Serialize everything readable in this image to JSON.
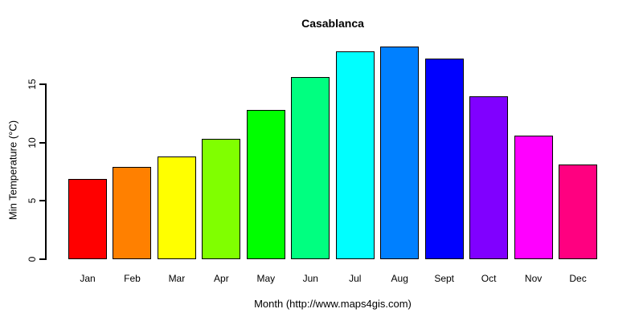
{
  "colors": {
    "background": "#FFFFFF",
    "text": "#000000",
    "axis": "#000000",
    "bar_border": "#000000"
  },
  "chart_data": {
    "type": "bar",
    "title": "Casablanca",
    "xlabel": "Month (http://www.maps4gis.com)",
    "ylabel": "Min Temperature (°C)",
    "categories": [
      "Jan",
      "Feb",
      "Mar",
      "Apr",
      "May",
      "Jun",
      "Jul",
      "Aug",
      "Sept",
      "Oct",
      "Nov",
      "Dec"
    ],
    "values": [
      6.9,
      7.9,
      8.8,
      10.3,
      12.8,
      15.6,
      17.8,
      18.2,
      17.2,
      14.0,
      10.6,
      8.1
    ],
    "bar_colors": [
      "#FF0000",
      "#FF8000",
      "#FFFF00",
      "#80FF00",
      "#00FF00",
      "#00FF80",
      "#00FFFF",
      "#0080FF",
      "#0000FF",
      "#8000FF",
      "#FF00FF",
      "#FF0080"
    ],
    "yticks": [
      0,
      5,
      10,
      15
    ],
    "ylim": [
      0,
      18.5
    ],
    "grid": false,
    "legend": "none",
    "ytick_label_rotation_deg": 90
  }
}
